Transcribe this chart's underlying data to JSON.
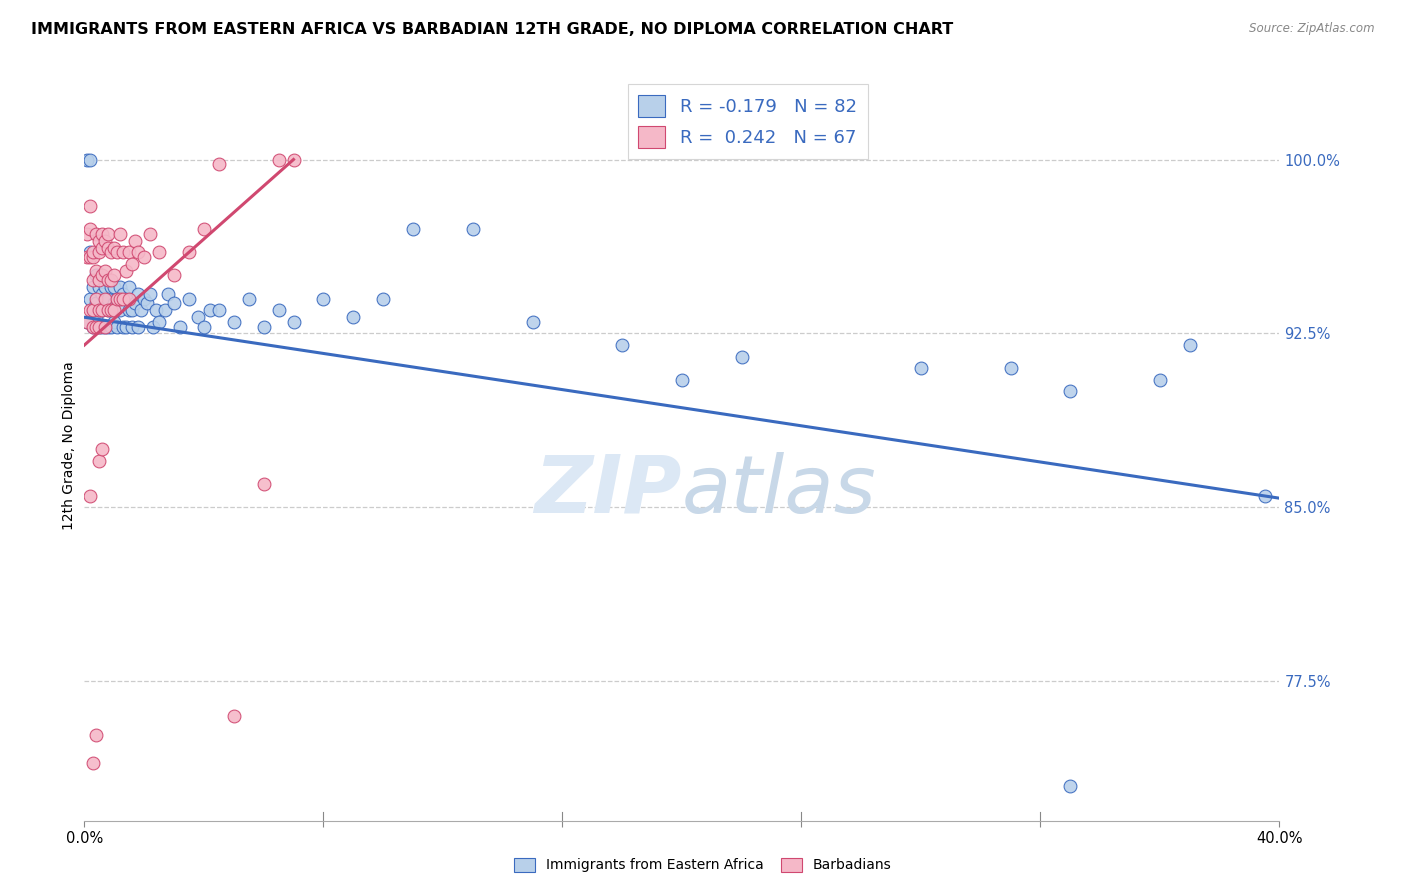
{
  "title": "IMMIGRANTS FROM EASTERN AFRICA VS BARBADIAN 12TH GRADE, NO DIPLOMA CORRELATION CHART",
  "source": "Source: ZipAtlas.com",
  "ytick_labels": [
    "77.5%",
    "85.0%",
    "92.5%",
    "100.0%"
  ],
  "ytick_values": [
    0.775,
    0.85,
    0.925,
    1.0
  ],
  "xmin": 0.0,
  "xmax": 0.4,
  "ymin": 0.715,
  "ymax": 1.038,
  "legend_r1": "R = -0.179",
  "legend_n1": "N = 82",
  "legend_r2": "R =  0.242",
  "legend_n2": "N = 67",
  "color_blue": "#b8d0ea",
  "color_pink": "#f5b8c8",
  "line_blue": "#3a6abf",
  "line_pink": "#d04870",
  "ylabel": "12th Grade, No Diploma",
  "watermark_zip": "ZIP",
  "watermark_atlas": "atlas",
  "bg_color": "#ffffff",
  "grid_color": "#cccccc",
  "title_fontsize": 11.5,
  "axis_label_fontsize": 10,
  "tick_fontsize": 10.5,
  "legend_fontsize": 13,
  "blue_scatter_x": [
    0.001,
    0.001,
    0.002,
    0.002,
    0.003,
    0.003,
    0.003,
    0.004,
    0.004,
    0.004,
    0.005,
    0.005,
    0.005,
    0.006,
    0.006,
    0.006,
    0.007,
    0.007,
    0.007,
    0.008,
    0.008,
    0.008,
    0.008,
    0.009,
    0.009,
    0.009,
    0.01,
    0.01,
    0.01,
    0.011,
    0.011,
    0.012,
    0.012,
    0.013,
    0.013,
    0.014,
    0.014,
    0.015,
    0.015,
    0.016,
    0.016,
    0.017,
    0.018,
    0.018,
    0.019,
    0.02,
    0.021,
    0.022,
    0.023,
    0.024,
    0.025,
    0.027,
    0.028,
    0.03,
    0.032,
    0.035,
    0.038,
    0.04,
    0.042,
    0.045,
    0.05,
    0.055,
    0.06,
    0.065,
    0.07,
    0.08,
    0.09,
    0.1,
    0.11,
    0.13,
    0.15,
    0.18,
    0.2,
    0.22,
    0.28,
    0.31,
    0.33,
    0.36,
    0.37,
    0.395,
    0.002,
    0.33
  ],
  "blue_scatter_y": [
    0.93,
    1.0,
    0.94,
    0.96,
    0.935,
    0.945,
    0.928,
    0.932,
    0.938,
    0.95,
    0.928,
    0.935,
    0.945,
    0.935,
    0.942,
    0.928,
    0.938,
    0.945,
    0.928,
    0.94,
    0.935,
    0.948,
    0.928,
    0.935,
    0.945,
    0.928,
    0.938,
    0.93,
    0.945,
    0.928,
    0.94,
    0.945,
    0.935,
    0.942,
    0.928,
    0.94,
    0.928,
    0.935,
    0.945,
    0.935,
    0.928,
    0.938,
    0.942,
    0.928,
    0.935,
    0.94,
    0.938,
    0.942,
    0.928,
    0.935,
    0.93,
    0.935,
    0.942,
    0.938,
    0.928,
    0.94,
    0.932,
    0.928,
    0.935,
    0.935,
    0.93,
    0.94,
    0.928,
    0.935,
    0.93,
    0.94,
    0.932,
    0.94,
    0.97,
    0.97,
    0.93,
    0.92,
    0.905,
    0.915,
    0.91,
    0.91,
    0.9,
    0.905,
    0.92,
    0.855,
    1.0,
    0.73
  ],
  "pink_scatter_x": [
    0.001,
    0.001,
    0.001,
    0.002,
    0.002,
    0.002,
    0.002,
    0.003,
    0.003,
    0.003,
    0.003,
    0.003,
    0.004,
    0.004,
    0.004,
    0.004,
    0.005,
    0.005,
    0.005,
    0.005,
    0.005,
    0.006,
    0.006,
    0.006,
    0.006,
    0.007,
    0.007,
    0.007,
    0.007,
    0.008,
    0.008,
    0.008,
    0.008,
    0.009,
    0.009,
    0.009,
    0.01,
    0.01,
    0.01,
    0.011,
    0.011,
    0.012,
    0.012,
    0.013,
    0.013,
    0.014,
    0.015,
    0.015,
    0.016,
    0.017,
    0.018,
    0.02,
    0.022,
    0.025,
    0.03,
    0.035,
    0.04,
    0.045,
    0.05,
    0.06,
    0.065,
    0.07,
    0.002,
    0.003,
    0.004,
    0.005,
    0.006
  ],
  "pink_scatter_y": [
    0.968,
    0.958,
    0.93,
    0.98,
    0.97,
    0.958,
    0.935,
    0.958,
    0.948,
    0.935,
    0.96,
    0.928,
    0.952,
    0.94,
    0.928,
    0.968,
    0.96,
    0.948,
    0.935,
    0.965,
    0.928,
    0.962,
    0.95,
    0.935,
    0.968,
    0.965,
    0.952,
    0.94,
    0.928,
    0.962,
    0.948,
    0.935,
    0.968,
    0.96,
    0.948,
    0.935,
    0.962,
    0.95,
    0.935,
    0.96,
    0.94,
    0.968,
    0.94,
    0.96,
    0.94,
    0.952,
    0.96,
    0.94,
    0.955,
    0.965,
    0.96,
    0.958,
    0.968,
    0.96,
    0.95,
    0.96,
    0.97,
    0.998,
    0.76,
    0.86,
    1.0,
    1.0,
    0.855,
    0.74,
    0.752,
    0.87,
    0.875
  ],
  "blue_line_x": [
    0.0,
    0.4
  ],
  "blue_line_y": [
    0.932,
    0.854
  ],
  "pink_line_x": [
    0.0,
    0.07
  ],
  "pink_line_y": [
    0.92,
    1.0
  ]
}
